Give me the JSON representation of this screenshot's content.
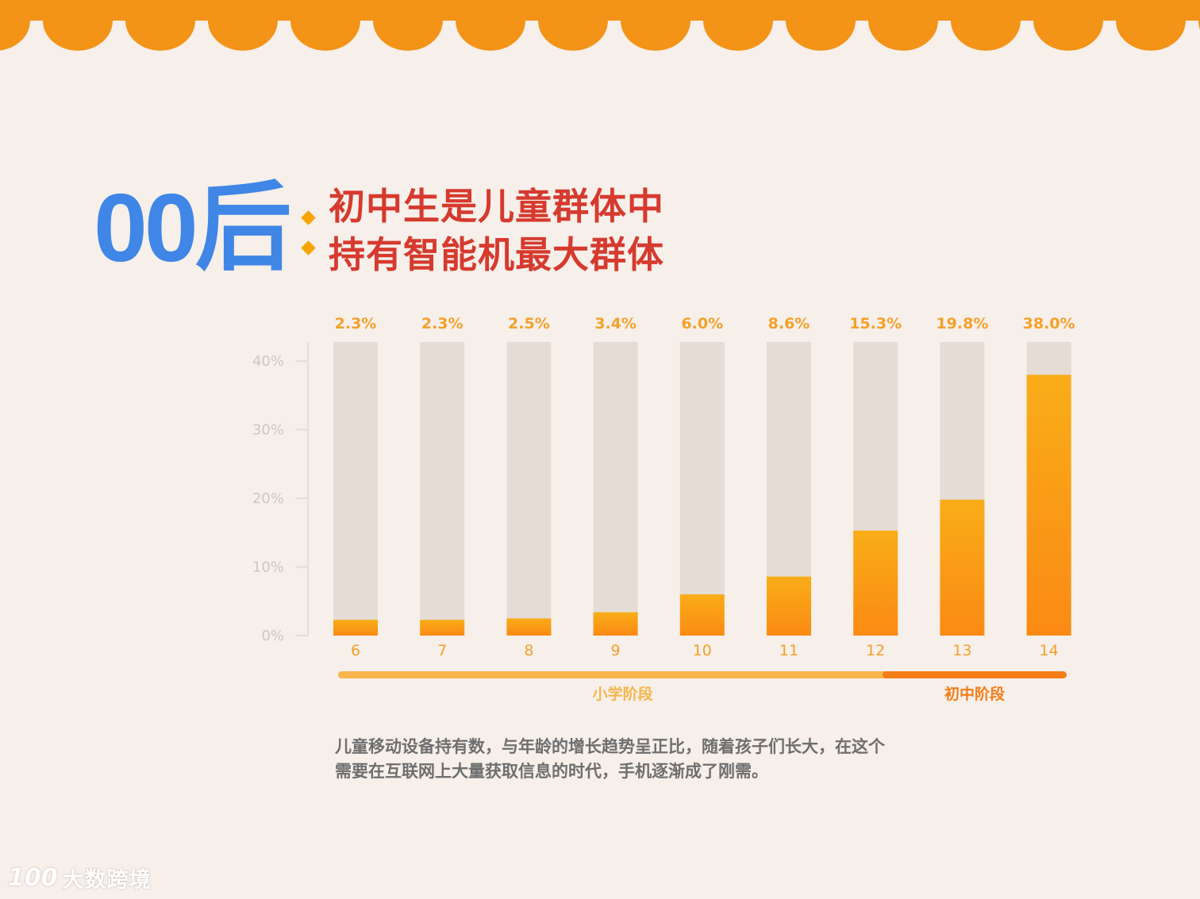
{
  "headline": {
    "big": "00后",
    "line1": "初中生是儿童群体中",
    "line2": "持有智能机最大群体"
  },
  "colors": {
    "banner": "#f39317",
    "track": "#e5dcd6",
    "bar_light": "#f9ad18",
    "bar_dark": "#fb8a14",
    "axis_text": "#cfc6c0",
    "value_text": "#f3a12a",
    "primary_phase": "#f7b54a",
    "middle_phase": "#f47d16"
  },
  "chart_data": {
    "type": "bar",
    "categories": [
      "6",
      "7",
      "8",
      "9",
      "10",
      "11",
      "12",
      "13",
      "14"
    ],
    "values": [
      2.3,
      2.3,
      2.5,
      3.4,
      6.0,
      8.6,
      15.3,
      19.8,
      38.0
    ],
    "value_labels": [
      "2.3%",
      "2.3%",
      "2.5%",
      "3.4%",
      "6.0%",
      "8.6%",
      "15.3%",
      "19.8%",
      "38.0%"
    ],
    "yticks": [
      "0%",
      "10%",
      "20%",
      "30%",
      "40%"
    ],
    "ylim": [
      0,
      40
    ],
    "grid": false,
    "legend": "none",
    "groups": [
      {
        "label": "小学阶段",
        "from": 0,
        "to": 6
      },
      {
        "label": "初中阶段",
        "from": 7,
        "to": 8
      }
    ]
  },
  "caption": {
    "line1": "儿童移动设备持有数，与年龄的增长趋势呈正比，随着孩子们长大，在这个",
    "line2": "需要在互联网上大量获取信息的时代，手机逐渐成了刚需。"
  },
  "logo": {
    "mark": "100",
    "text": "大数跨境"
  }
}
